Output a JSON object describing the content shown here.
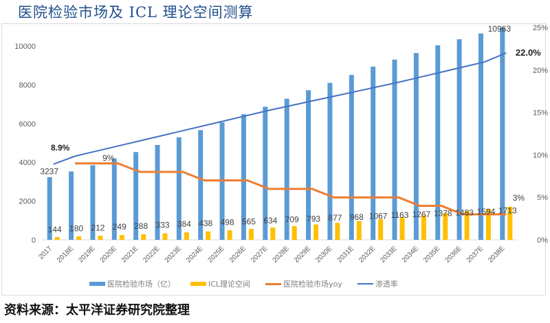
{
  "title": "医院检验市场及 ICL 理论空间测算",
  "source": "资料来源：太平洋证券研究院整理",
  "colors": {
    "market_bar": "#5b9bd5",
    "icl_bar": "#ffc000",
    "yoy_line": "#ed7d31",
    "penetration_line": "#4472c4",
    "axis_text": "#595959",
    "title": "#1f4e8c"
  },
  "chart_data": {
    "type": "bar",
    "title": "医院检验市场及 ICL 理论空间测算",
    "categories": [
      "2017",
      "2018E",
      "2019E",
      "2020E",
      "2021E",
      "2022E",
      "2023E",
      "2024E",
      "2025E",
      "2026E",
      "2027E",
      "2028E",
      "2029E",
      "2030E",
      "2031E",
      "2032E",
      "2033E",
      "2034E",
      "2035E",
      "2036E",
      "2037E",
      "2038E"
    ],
    "y_left": {
      "min": 0,
      "max": 11000,
      "ticks": [
        0,
        2000,
        4000,
        6000,
        8000,
        10000
      ],
      "tick_labels": [
        "0",
        "2000",
        "4000",
        "6000",
        "8000",
        "10000"
      ]
    },
    "y_right": {
      "min": 0,
      "max": 0.25,
      "ticks": [
        0,
        0.05,
        0.1,
        0.15,
        0.2,
        0.25
      ],
      "tick_labels": [
        "0%",
        "5%",
        "10%",
        "15%",
        "20%",
        "25%"
      ]
    },
    "grid": false,
    "legend_position": "bottom",
    "series": [
      {
        "name": "医院检验市场（亿）",
        "type": "bar",
        "axis": "left",
        "values": [
          3237,
          3530,
          3850,
          4195,
          4530,
          4895,
          5290,
          5660,
          6060,
          6480,
          6870,
          7280,
          7720,
          8100,
          8510,
          8940,
          9300,
          9640,
          10040,
          10350,
          10650,
          10963
        ],
        "data_labels": {
          "0": "3237",
          "21": "10963"
        }
      },
      {
        "name": "ICL理论空间",
        "type": "bar",
        "axis": "left",
        "values": [
          144,
          180,
          212,
          249,
          288,
          333,
          384,
          438,
          498,
          565,
          634,
          709,
          793,
          877,
          968,
          1067,
          1163,
          1267,
          1378,
          1483,
          1594,
          1713
        ],
        "data_labels": [
          "144",
          "180",
          "212",
          "249",
          "288",
          "333",
          "384",
          "438",
          "498",
          "565",
          "634",
          "709",
          "793",
          "877",
          "968",
          "1067",
          "1163",
          "1267",
          "1378",
          "1483",
          "1594",
          "1713"
        ]
      },
      {
        "name": "医院检验市场yoy",
        "type": "line",
        "axis": "right",
        "values": [
          null,
          0.09,
          0.09,
          0.09,
          0.08,
          0.08,
          0.08,
          0.07,
          0.07,
          0.07,
          0.06,
          0.06,
          0.06,
          0.05,
          0.05,
          0.05,
          0.05,
          0.04,
          0.04,
          0.03,
          0.03,
          0.03
        ],
        "data_labels": {
          "3": "9%",
          "21": "3%"
        }
      },
      {
        "name": "渗透率",
        "type": "line",
        "axis": "right",
        "values": [
          0.089,
          0.0985,
          0.1045,
          0.1105,
          0.1165,
          0.1225,
          0.1285,
          0.1345,
          0.1405,
          0.1465,
          0.1525,
          0.158,
          0.1635,
          0.169,
          0.1745,
          0.18,
          0.1855,
          0.1915,
          0.1975,
          0.2035,
          0.2095,
          0.22
        ],
        "data_labels": {
          "0": "8.9%",
          "21": "22.0%"
        }
      }
    ]
  }
}
